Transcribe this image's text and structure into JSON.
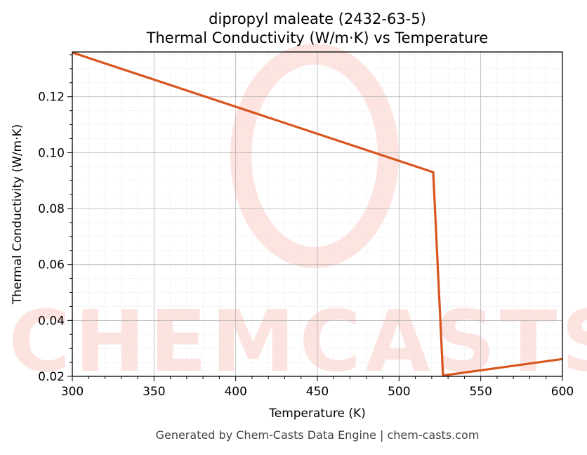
{
  "chart_data": {
    "type": "line",
    "title": "dipropyl maleate (2432-63-5)",
    "subtitle": "Thermal Conductivity (W/m·K) vs Temperature",
    "xlabel": "Temperature (K)",
    "ylabel": "Thermal Conductivity (W/m·K)",
    "xlim": [
      300,
      600
    ],
    "ylim": [
      0.02,
      0.136
    ],
    "xticks": [
      "300",
      "350",
      "400",
      "450",
      "500",
      "550",
      "600"
    ],
    "yticks": [
      "0.02",
      "0.04",
      "0.06",
      "0.08",
      "0.10",
      "0.12"
    ],
    "grid": true,
    "series": [
      {
        "color": "#d9541e",
        "x": [
          300,
          520.9,
          526.9,
          600
        ],
        "y": [
          0.1358,
          0.093,
          0.0203,
          0.0262
        ]
      }
    ]
  },
  "watermark": "CHEMCASTS",
  "footer": "Generated by Chem-Casts Data Engine | chem-casts.com"
}
